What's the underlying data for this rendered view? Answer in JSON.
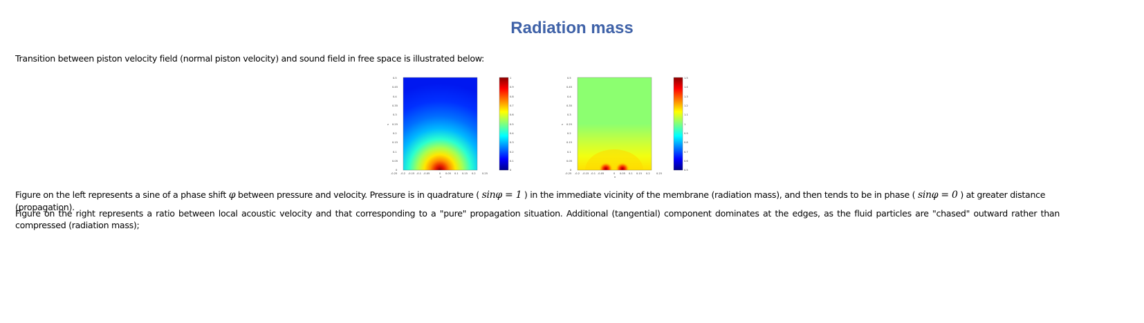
{
  "page": {
    "title": "Radiation mass",
    "intro": "Transition between piston velocity field (normal piston velocity) and sound field in free space is illustrated below:",
    "para_left": {
      "text1": "Figure on the left represents a sine of a phase shift ",
      "phi": "φ",
      "text2": " between pressure and velocity. Pressure is in quadrature ( ",
      "eq1": "sinφ = 1",
      "text3": " ) in the immediate vicinity of the membrane (radiation mass), and then tends to be in phase ( ",
      "eq2": "sinφ = 0",
      "text4": " ) at greater distance (propagation)."
    },
    "para_right": "Figure on the right represents a ratio between local acoustic velocity and that corresponding to a \"pure\" propagation situation. Additional (tangential) component dominates at the edges, as the fluid particles are \"chased\" outward rather than compressed (radiation mass);"
  },
  "figures": [
    {
      "name": "phase-shift-sine-plot",
      "y_ticks": [
        "0.5",
        "0.45",
        "0.4",
        "0.35",
        "0.3",
        "0.25",
        "0.2",
        "0.15",
        "0.1",
        "0.05",
        "0"
      ],
      "x_ticks": [
        "-0.25",
        "-0.2",
        "-0.15",
        "-0.1",
        "-0.05",
        "0",
        "0.05",
        "0.1",
        "0.15",
        "0.2",
        "0.25"
      ],
      "xlabel": "x",
      "ylabel": "z",
      "colorbar_ticks": [
        "1",
        "0.9",
        "0.8",
        "0.7",
        "0.6",
        "0.5",
        "0.4",
        "0.3",
        "0.2",
        "0.1",
        "0"
      ]
    },
    {
      "name": "velocity-ratio-plot",
      "y_ticks": [
        "0.5",
        "0.45",
        "0.4",
        "0.35",
        "0.3",
        "0.25",
        "0.2",
        "0.15",
        "0.1",
        "0.05",
        "0"
      ],
      "x_ticks": [
        "-0.25",
        "-0.2",
        "-0.15",
        "-0.1",
        "-0.05",
        "0",
        "0.05",
        "0.1",
        "0.15",
        "0.2",
        "0.25"
      ],
      "xlabel": "x",
      "ylabel": "z",
      "colorbar_ticks": [
        "1.5",
        "1.4",
        "1.3",
        "1.2",
        "1.1",
        "1",
        "0.9",
        "0.8",
        "0.7",
        "0.6",
        "0.5"
      ]
    }
  ]
}
